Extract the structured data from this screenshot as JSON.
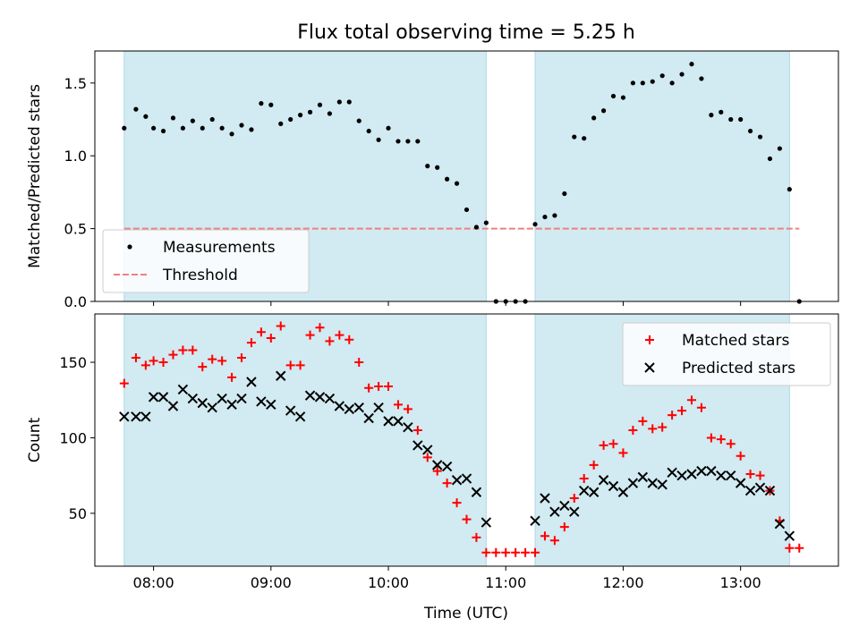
{
  "chart_data": {
    "type": "scatter",
    "title": "Flux total observing time = 5.25 h",
    "xlabel": "Time (UTC)",
    "x_range": [
      "07:30",
      "13:50"
    ],
    "x_ticks": [
      "08:00",
      "09:00",
      "10:00",
      "11:00",
      "12:00",
      "13:00"
    ],
    "observing_windows": [
      [
        "07:45",
        "10:50"
      ],
      [
        "11:15",
        "13:25"
      ]
    ],
    "window_color": "#add8e6",
    "panels": [
      {
        "ylabel": "Matched/Predicted stars",
        "ylim": [
          0,
          1.72
        ],
        "yticks": [
          "0.0",
          "0.5",
          "1.0",
          "1.5"
        ],
        "legend_position": "lower-left",
        "threshold": {
          "name": "Threshold",
          "value": 0.5,
          "color": "#f08080",
          "style": "dashed",
          "x_range": [
            "07:45",
            "13:30"
          ]
        },
        "series": [
          {
            "name": "Measurements",
            "marker": "dot",
            "color": "#000000",
            "x": [
              "07:45",
              "07:51",
              "07:56",
              "08:00",
              "08:05",
              "08:10",
              "08:15",
              "08:20",
              "08:25",
              "08:30",
              "08:35",
              "08:40",
              "08:45",
              "08:50",
              "08:55",
              "09:00",
              "09:05",
              "09:10",
              "09:15",
              "09:20",
              "09:25",
              "09:30",
              "09:35",
              "09:40",
              "09:45",
              "09:50",
              "09:55",
              "10:00",
              "10:05",
              "10:10",
              "10:15",
              "10:20",
              "10:25",
              "10:30",
              "10:35",
              "10:40",
              "10:45",
              "10:50",
              "10:55",
              "11:00",
              "11:05",
              "11:10",
              "11:15",
              "11:20",
              "11:25",
              "11:30",
              "11:35",
              "11:40",
              "11:45",
              "11:50",
              "11:55",
              "12:00",
              "12:05",
              "12:10",
              "12:15",
              "12:20",
              "12:25",
              "12:30",
              "12:35",
              "12:40",
              "12:45",
              "12:50",
              "12:55",
              "13:00",
              "13:05",
              "13:10",
              "13:15",
              "13:20",
              "13:25",
              "13:30"
            ],
            "y": [
              1.19,
              1.32,
              1.27,
              1.19,
              1.17,
              1.26,
              1.19,
              1.24,
              1.19,
              1.25,
              1.19,
              1.15,
              1.21,
              1.18,
              1.36,
              1.35,
              1.22,
              1.25,
              1.28,
              1.3,
              1.35,
              1.29,
              1.37,
              1.37,
              1.24,
              1.17,
              1.11,
              1.19,
              1.1,
              1.1,
              1.1,
              0.93,
              0.92,
              0.84,
              0.81,
              0.63,
              0.51,
              0.54,
              0.0,
              0.0,
              0.0,
              0.0,
              0.53,
              0.58,
              0.59,
              0.74,
              1.13,
              1.12,
              1.26,
              1.31,
              1.41,
              1.4,
              1.5,
              1.5,
              1.51,
              1.55,
              1.5,
              1.56,
              1.63,
              1.53,
              1.28,
              1.3,
              1.25,
              1.25,
              1.17,
              1.13,
              0.98,
              1.05,
              0.77,
              0.0
            ]
          }
        ]
      },
      {
        "ylabel": "Count",
        "ylim": [
          15,
          182
        ],
        "yticks": [
          "50",
          "100",
          "150"
        ],
        "legend_position": "top-right",
        "series": [
          {
            "name": "Matched stars",
            "marker": "plus",
            "color": "#ff0000",
            "x": [
              "07:45",
              "07:51",
              "07:56",
              "08:00",
              "08:05",
              "08:10",
              "08:15",
              "08:20",
              "08:25",
              "08:30",
              "08:35",
              "08:40",
              "08:45",
              "08:50",
              "08:55",
              "09:00",
              "09:05",
              "09:10",
              "09:15",
              "09:20",
              "09:25",
              "09:30",
              "09:35",
              "09:40",
              "09:45",
              "09:50",
              "09:55",
              "10:00",
              "10:05",
              "10:10",
              "10:15",
              "10:20",
              "10:25",
              "10:30",
              "10:35",
              "10:40",
              "10:45",
              "10:50",
              "10:55",
              "11:00",
              "11:05",
              "11:10",
              "11:15",
              "11:20",
              "11:25",
              "11:30",
              "11:35",
              "11:40",
              "11:45",
              "11:50",
              "11:55",
              "12:00",
              "12:05",
              "12:10",
              "12:15",
              "12:20",
              "12:25",
              "12:30",
              "12:35",
              "12:40",
              "12:45",
              "12:50",
              "12:55",
              "13:00",
              "13:05",
              "13:10",
              "13:15",
              "13:20",
              "13:25",
              "13:30"
            ],
            "y": [
              136,
              153,
              148,
              151,
              150,
              155,
              158,
              158,
              147,
              152,
              151,
              140,
              153,
              163,
              170,
              166,
              174,
              148,
              148,
              168,
              173,
              164,
              168,
              165,
              150,
              133,
              134,
              134,
              122,
              119,
              105,
              87,
              78,
              70,
              57,
              46,
              34,
              24,
              24,
              24,
              24,
              24,
              24,
              35,
              32,
              41,
              60,
              73,
              82,
              95,
              96,
              90,
              105,
              111,
              106,
              107,
              115,
              118,
              125,
              120,
              100,
              99,
              96,
              88,
              76,
              75,
              65,
              45,
              27,
              27
            ]
          },
          {
            "name": "Predicted stars",
            "marker": "x",
            "color": "#000000",
            "x": [
              "07:45",
              "07:51",
              "07:56",
              "08:00",
              "08:05",
              "08:10",
              "08:15",
              "08:20",
              "08:25",
              "08:30",
              "08:35",
              "08:40",
              "08:45",
              "08:50",
              "08:55",
              "09:00",
              "09:05",
              "09:10",
              "09:15",
              "09:20",
              "09:25",
              "09:30",
              "09:35",
              "09:40",
              "09:45",
              "09:50",
              "09:55",
              "10:00",
              "10:05",
              "10:10",
              "10:15",
              "10:20",
              "10:25",
              "10:30",
              "10:35",
              "10:40",
              "10:45",
              "10:50",
              "11:15",
              "11:20",
              "11:25",
              "11:30",
              "11:35",
              "11:40",
              "11:45",
              "11:50",
              "11:55",
              "12:00",
              "12:05",
              "12:10",
              "12:15",
              "12:20",
              "12:25",
              "12:30",
              "12:35",
              "12:40",
              "12:45",
              "12:50",
              "12:55",
              "13:00",
              "13:05",
              "13:10",
              "13:15",
              "13:20",
              "13:25"
            ],
            "y": [
              114,
              114,
              114,
              127,
              127,
              121,
              132,
              126,
              123,
              120,
              126,
              122,
              126,
              137,
              124,
              122,
              141,
              118,
              114,
              128,
              127,
              126,
              121,
              119,
              120,
              113,
              120,
              111,
              111,
              107,
              95,
              92,
              82,
              81,
              72,
              73,
              64,
              44,
              45,
              60,
              51,
              55,
              51,
              65,
              64,
              72,
              68,
              64,
              70,
              74,
              70,
              69,
              77,
              75,
              76,
              78,
              78,
              75,
              75,
              70,
              65,
              67,
              65,
              43,
              35
            ]
          }
        ]
      }
    ]
  }
}
